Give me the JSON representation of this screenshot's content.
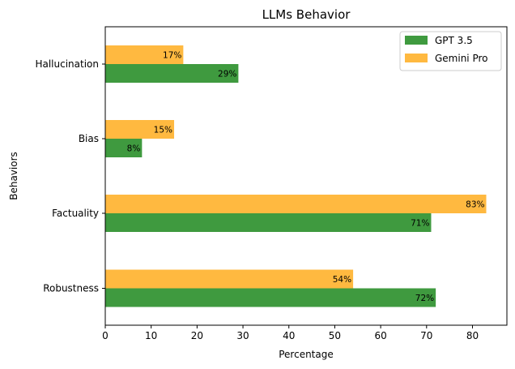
{
  "chart_data": {
    "type": "bar",
    "orientation": "horizontal",
    "title": "LLMs Behavior",
    "xlabel": "Percentage",
    "ylabel": "Behaviors",
    "categories": [
      "Robustness",
      "Factuality",
      "Bias",
      "Hallucination"
    ],
    "series": [
      {
        "name": "GPT 3.5",
        "color": "#3f9a3f",
        "values": [
          72,
          71,
          8,
          29
        ],
        "labels": [
          "72%",
          "71%",
          "8%",
          "29%"
        ]
      },
      {
        "name": "Gemini Pro",
        "color": "#ffb940",
        "values": [
          54,
          83,
          15,
          17
        ],
        "labels": [
          "54%",
          "83%",
          "15%",
          "17%"
        ]
      }
    ],
    "xlim": [
      0,
      87.5
    ],
    "xticks": [
      0,
      10,
      20,
      30,
      40,
      50,
      60,
      70,
      80
    ],
    "grid": false,
    "legend_position": "top-right"
  }
}
